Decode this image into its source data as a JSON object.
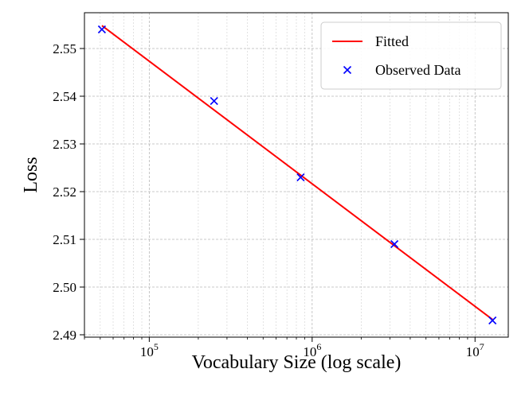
{
  "chart_data": {
    "type": "line",
    "xlabel": "Vocabulary Size (log scale)",
    "ylabel": "Loss",
    "xscale": "log",
    "xlim": [
      40000,
      16000000
    ],
    "ylim": [
      2.4895,
      2.5575
    ],
    "x_ticks": [
      {
        "value": 100000,
        "base": "10",
        "exp": "5"
      },
      {
        "value": 1000000,
        "base": "10",
        "exp": "6"
      },
      {
        "value": 10000000,
        "base": "10",
        "exp": "7"
      }
    ],
    "y_ticks": [
      {
        "value": 2.49,
        "label": "2.49"
      },
      {
        "value": 2.5,
        "label": "2.50"
      },
      {
        "value": 2.51,
        "label": "2.51"
      },
      {
        "value": 2.52,
        "label": "2.52"
      },
      {
        "value": 2.53,
        "label": "2.53"
      },
      {
        "value": 2.54,
        "label": "2.54"
      },
      {
        "value": 2.55,
        "label": "2.55"
      }
    ],
    "grid": true,
    "legend_position": "top-right",
    "series": [
      {
        "name": "Fitted",
        "kind": "line",
        "color": "#ff0000",
        "x": [
          51200,
          12800000
        ],
        "y": [
          2.5548,
          2.4932
        ]
      },
      {
        "name": "Observed Data",
        "kind": "scatter",
        "marker": "x",
        "color": "#0000ff",
        "x": [
          51200,
          250000,
          850000,
          3200000,
          12800000
        ],
        "y": [
          2.554,
          2.539,
          2.523,
          2.509,
          2.493
        ]
      }
    ]
  }
}
